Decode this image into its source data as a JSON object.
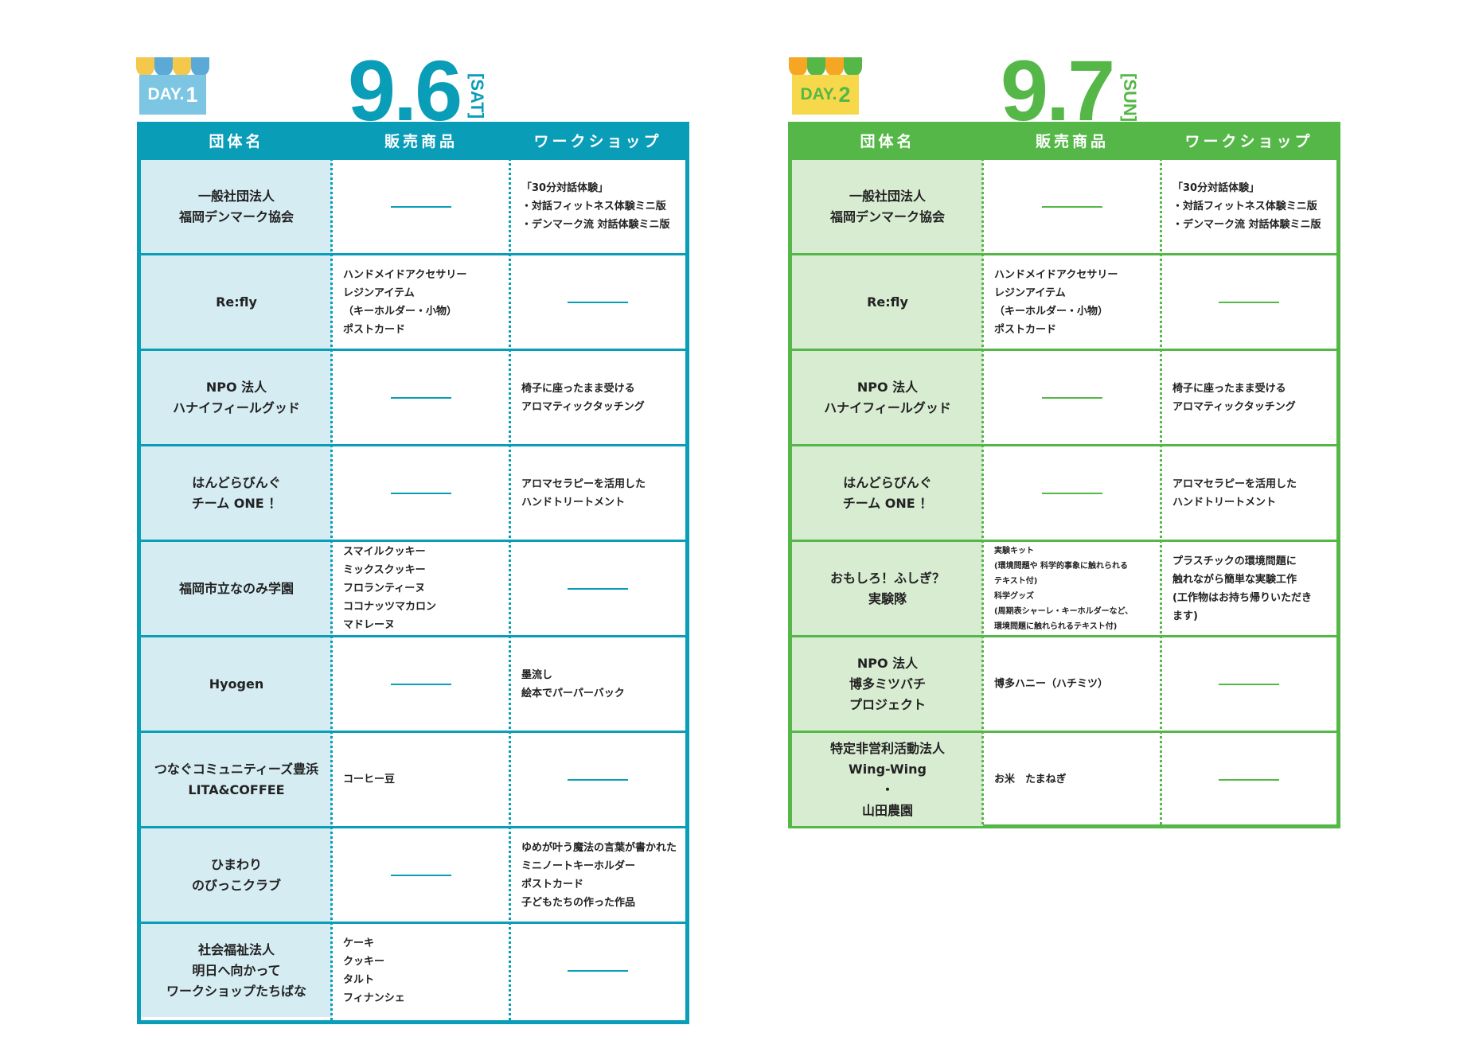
{
  "headers": {
    "col1": "団体名",
    "col2": "販売商品",
    "col3": "ワークショップ"
  },
  "day1": {
    "badge": "DAY.",
    "badge_num": "1",
    "date": "9.6",
    "dow": "[SAT]",
    "colors": {
      "main": "#0a9db8",
      "light": "#d5ecf3",
      "awning": [
        "#f4c84a",
        "#5aa9d6",
        "#f4c84a",
        "#5aa9d6"
      ]
    },
    "rows": [
      {
        "name": "一般社団法人\n福岡デンマーク協会",
        "goods": "",
        "workshop": "「30分対話体験」\n・対話フィットネス体験ミニ版\n・デンマーク流 対話体験ミニ版"
      },
      {
        "name": "Re:fly",
        "goods": "ハンドメイドアクセサリー\nレジンアイテム\n（キーホルダー・小物）\nポストカード",
        "workshop": ""
      },
      {
        "name": "NPO 法人\nハナイフィールグッド",
        "goods": "",
        "workshop": "椅子に座ったまま受ける\nアロマティックタッチング"
      },
      {
        "name": "はんどらびんぐ\nチーム ONE ！",
        "goods": "",
        "workshop": "アロマセラピーを活用した\nハンドトリートメント"
      },
      {
        "name": "福岡市立なのみ学園",
        "goods": "スマイルクッキー\nミックスクッキー\nフロランティーヌ\nココナッツマカロン\nマドレーヌ",
        "workshop": ""
      },
      {
        "name": "Hyogen",
        "goods": "",
        "workshop": "墨流し\n絵本でパーパーバック"
      },
      {
        "name": "つなぐコミュニティーズ豊浜\nLITA&COFFEE",
        "goods": "コーヒー豆",
        "workshop": ""
      },
      {
        "name": "ひまわり\nのびっこクラブ",
        "goods": "",
        "workshop": "ゆめが叶う魔法の言葉が書かれた\nミニノートキーホルダー\nポストカード\n子どもたちの作った作品"
      },
      {
        "name": "社会福祉法人\n明日へ向かって\nワークショップたちばな",
        "goods": "ケーキ\nクッキー\nタルト\nフィナンシェ",
        "workshop": ""
      }
    ]
  },
  "day2": {
    "badge": "DAY.",
    "badge_num": "2",
    "date": "9.7",
    "dow": "[SUN]",
    "colors": {
      "main": "#55b748",
      "light": "#d8ecd2",
      "awning": [
        "#f6a623",
        "#55b748",
        "#f6a623",
        "#55b748"
      ]
    },
    "rows": [
      {
        "name": "一般社団法人\n福岡デンマーク協会",
        "goods": "",
        "workshop": "「30分対話体験」\n・対話フィットネス体験ミニ版\n・デンマーク流 対話体験ミニ版"
      },
      {
        "name": "Re:fly",
        "goods": "ハンドメイドアクセサリー\nレジンアイテム\n（キーホルダー・小物）\nポストカード",
        "workshop": ""
      },
      {
        "name": "NPO 法人\nハナイフィールグッド",
        "goods": "",
        "workshop": "椅子に座ったまま受ける\nアロマティックタッチング"
      },
      {
        "name": "はんどらびんぐ\nチーム ONE ！",
        "goods": "",
        "workshop": "アロマセラピーを活用した\nハンドトリートメント"
      },
      {
        "name": "おもしろ！ふしぎ？\n実験隊",
        "goods": "実験キット\n(環境問題や 科学的事象に触れられる\nテキスト付)\n科学グッズ\n(周期表シャーレ・キーホルダーなど、\n環境問題に触れられるテキスト付)",
        "goods_small": true,
        "workshop": "プラスチックの環境問題に\n触れながら簡単な実験工作\n(工作物はお持ち帰りいただき\nます)"
      },
      {
        "name": "NPO 法人\n博多ミツバチ\nプロジェクト",
        "goods": "博多ハニー（ハチミツ）",
        "workshop": ""
      },
      {
        "name": "特定非営利活動法人\nWing-Wing\n・\n山田農園",
        "goods": "お米　たまねぎ",
        "workshop": ""
      }
    ]
  }
}
